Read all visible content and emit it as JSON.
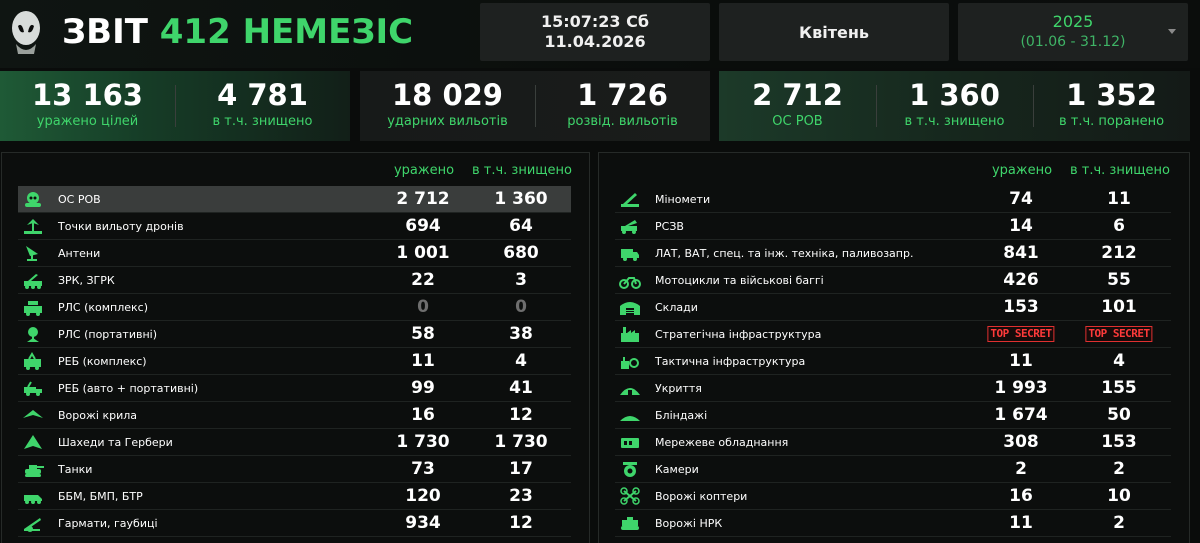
{
  "header": {
    "title_white": "ЗВІТ",
    "title_green": "412 НЕМЕЗІС",
    "time": "15:07:23 Сб",
    "date": "11.04.2026",
    "month": "Квітень",
    "year": "2025",
    "range": "(01.06 - 31.12)"
  },
  "stats": [
    {
      "value": "13 163",
      "label": "уражено цілей"
    },
    {
      "value": "4 781",
      "label": "в т.ч. знищено"
    },
    {
      "value": "18 029",
      "label": "ударних вильотів"
    },
    {
      "value": "1 726",
      "label": "розвід. вильотів"
    },
    {
      "value": "2 712",
      "label": "ОС РОВ"
    },
    {
      "value": "1 360",
      "label": "в т.ч. знищено"
    },
    {
      "value": "1 352",
      "label": "в т.ч. поранено"
    }
  ],
  "left_table": {
    "col_hit": "уражено",
    "col_destroyed": "в т.ч. знищено",
    "rows": [
      {
        "icon": "alien-icon",
        "name": "ОС РОВ",
        "hit": "2 712",
        "destroyed": "1 360"
      },
      {
        "icon": "drone-launch-icon",
        "name": "Точки вильоту дронів",
        "hit": "694",
        "destroyed": "64"
      },
      {
        "icon": "antenna-icon",
        "name": "Антени",
        "hit": "1 001",
        "destroyed": "680"
      },
      {
        "icon": "air-defense-icon",
        "name": "ЗРК, ЗГРК",
        "hit": "22",
        "destroyed": "3"
      },
      {
        "icon": "radar-complex-icon",
        "name": "РЛС (комплекс)",
        "hit": "0",
        "destroyed": "0"
      },
      {
        "icon": "radar-portable-icon",
        "name": "РЛС (портативні)",
        "hit": "58",
        "destroyed": "38"
      },
      {
        "icon": "ew-complex-icon",
        "name": "РЕБ (комплекс)",
        "hit": "11",
        "destroyed": "4"
      },
      {
        "icon": "ew-vehicle-icon",
        "name": "РЕБ (авто + портативні)",
        "hit": "99",
        "destroyed": "41"
      },
      {
        "icon": "wing-icon",
        "name": "Ворожі крила",
        "hit": "16",
        "destroyed": "12"
      },
      {
        "icon": "shahed-icon",
        "name": "Шахеди та Гербери",
        "hit": "1 730",
        "destroyed": "1 730"
      },
      {
        "icon": "tank-icon",
        "name": "Танки",
        "hit": "73",
        "destroyed": "17"
      },
      {
        "icon": "apc-icon",
        "name": "ББМ, БМП, БТР",
        "hit": "120",
        "destroyed": "23"
      },
      {
        "icon": "howitzer-icon",
        "name": "Гармати, гаубиці",
        "hit": "934",
        "destroyed": "12"
      }
    ]
  },
  "right_table": {
    "col_hit": "уражено",
    "col_destroyed": "в т.ч. знищено",
    "rows": [
      {
        "icon": "mortar-icon",
        "name": "Міномети",
        "hit": "74",
        "destroyed": "11"
      },
      {
        "icon": "mlrs-icon",
        "name": "РСЗВ",
        "hit": "14",
        "destroyed": "6"
      },
      {
        "icon": "truck-icon",
        "name": "ЛАТ, ВАТ, спец. та інж. техніка, паливозапр.",
        "hit": "841",
        "destroyed": "212"
      },
      {
        "icon": "motorcycle-icon",
        "name": "Мотоцикли та військові баггі",
        "hit": "426",
        "destroyed": "55"
      },
      {
        "icon": "warehouse-icon",
        "name": "Склади",
        "hit": "153",
        "destroyed": "101"
      },
      {
        "icon": "factory-icon",
        "name": "Стратегічна інфраструктура",
        "hit": "TOP SECRET",
        "destroyed": "TOP SECRET"
      },
      {
        "icon": "infrastructure-icon",
        "name": "Тактична інфраструктура",
        "hit": "11",
        "destroyed": "4"
      },
      {
        "icon": "shelter-icon",
        "name": "Укриття",
        "hit": "1 993",
        "destroyed": "155"
      },
      {
        "icon": "dugout-icon",
        "name": "Бліндажі",
        "hit": "1 674",
        "destroyed": "50"
      },
      {
        "icon": "network-icon",
        "name": "Мережеве обладнання",
        "hit": "308",
        "destroyed": "153"
      },
      {
        "icon": "camera-icon",
        "name": "Камери",
        "hit": "2",
        "destroyed": "2"
      },
      {
        "icon": "quadcopter-icon",
        "name": "Ворожі коптери",
        "hit": "16",
        "destroyed": "10"
      },
      {
        "icon": "ugv-icon",
        "name": "Ворожі НРК",
        "hit": "11",
        "destroyed": "2"
      }
    ]
  },
  "colors": {
    "accent": "#3fd56b",
    "secret": "#ff3a3a",
    "active_row": "#3a3d3c"
  }
}
